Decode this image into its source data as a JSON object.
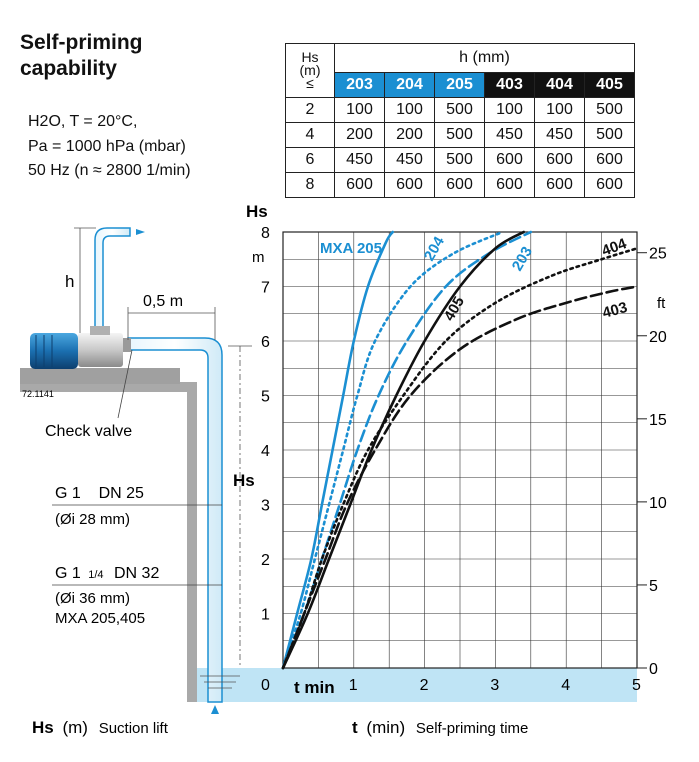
{
  "title_lines": [
    "Self-priming",
    "capability"
  ],
  "conditions": [
    "H2O, T = 20°C,",
    "Pa = 1000 hPa (mbar)",
    "50 Hz (n ≈ 2800 1/min)"
  ],
  "table": {
    "hs_header": [
      "Hs",
      "(m)",
      "≤"
    ],
    "h_header": "h (mm)",
    "models": [
      {
        "name": "203",
        "color": "#1b8fd2"
      },
      {
        "name": "204",
        "color": "#1b8fd2"
      },
      {
        "name": "205",
        "color": "#1b8fd2"
      },
      {
        "name": "403",
        "color": "#111111"
      },
      {
        "name": "404",
        "color": "#111111"
      },
      {
        "name": "405",
        "color": "#111111"
      }
    ],
    "rows": [
      {
        "hs": "2",
        "values": [
          "100",
          "100",
          "500",
          "100",
          "100",
          "500"
        ]
      },
      {
        "hs": "4",
        "values": [
          "200",
          "200",
          "500",
          "450",
          "450",
          "500"
        ]
      },
      {
        "hs": "6",
        "values": [
          "450",
          "450",
          "500",
          "600",
          "600",
          "600"
        ]
      },
      {
        "hs": "8",
        "values": [
          "600",
          "600",
          "600",
          "600",
          "600",
          "600"
        ]
      }
    ]
  },
  "diagram": {
    "h_label": "h",
    "distance_label": "0,5 m",
    "code": "72.1141",
    "check_valve": "Check valve",
    "hs_label": "Hs",
    "pipe1": {
      "line1": "G 1    DN 25",
      "line2": "(Øi 28 mm)"
    },
    "pipe2": {
      "line1a": "G 1",
      "line1b": "1/4",
      "line1c": "DN 32",
      "line2": "(Øi 36 mm)",
      "line3": "MXA 205,405"
    },
    "water_color": "#bfe4f5",
    "pipe_color": "#1b8fd2"
  },
  "chart_data": {
    "type": "line",
    "ylabel": "Hs",
    "yunit": "m",
    "secondary_unit": "ft",
    "xlabel": "t min",
    "xlim": [
      0,
      5
    ],
    "ylim": [
      0,
      8
    ],
    "x_ticks": [
      "0",
      "1",
      "2",
      "3",
      "4",
      "5"
    ],
    "y_ticks": [
      "1",
      "2",
      "3",
      "4",
      "5",
      "6",
      "7",
      "8"
    ],
    "ft_ticks": [
      "0",
      "5",
      "10",
      "15",
      "20",
      "25"
    ],
    "grid": true,
    "series": [
      {
        "name": "MXA 205",
        "color": "#1b8fd2",
        "dash": "solid",
        "points": [
          [
            0,
            0
          ],
          [
            0.2,
            1.0
          ],
          [
            0.4,
            2.0
          ],
          [
            0.55,
            3.0
          ],
          [
            0.7,
            4.0
          ],
          [
            0.85,
            5.0
          ],
          [
            1.0,
            6.0
          ],
          [
            1.2,
            7.0
          ],
          [
            1.45,
            7.8
          ],
          [
            1.55,
            8.0
          ]
        ]
      },
      {
        "name": "204",
        "color": "#1b8fd2",
        "dash": "dot",
        "points": [
          [
            0,
            0
          ],
          [
            0.25,
            1.0
          ],
          [
            0.45,
            2.0
          ],
          [
            0.65,
            3.0
          ],
          [
            0.85,
            4.0
          ],
          [
            1.05,
            5.0
          ],
          [
            1.3,
            6.0
          ],
          [
            1.8,
            7.0
          ],
          [
            2.4,
            7.6
          ],
          [
            3.1,
            8.0
          ]
        ]
      },
      {
        "name": "203",
        "color": "#1b8fd2",
        "dash": "dash",
        "points": [
          [
            0,
            0
          ],
          [
            0.3,
            1.0
          ],
          [
            0.55,
            2.0
          ],
          [
            0.8,
            3.0
          ],
          [
            1.05,
            4.0
          ],
          [
            1.35,
            5.0
          ],
          [
            1.75,
            6.0
          ],
          [
            2.3,
            7.0
          ],
          [
            2.9,
            7.6
          ],
          [
            3.5,
            8.0
          ]
        ]
      },
      {
        "name": "405",
        "color": "#111111",
        "dash": "solid",
        "points": [
          [
            0,
            0
          ],
          [
            0.35,
            1.0
          ],
          [
            0.65,
            2.0
          ],
          [
            0.95,
            3.0
          ],
          [
            1.25,
            4.0
          ],
          [
            1.6,
            5.0
          ],
          [
            2.0,
            6.0
          ],
          [
            2.5,
            7.0
          ],
          [
            3.0,
            7.7
          ],
          [
            3.4,
            8.0
          ]
        ]
      },
      {
        "name": "404",
        "color": "#111111",
        "dash": "dot",
        "points": [
          [
            0,
            0
          ],
          [
            0.3,
            1.0
          ],
          [
            0.55,
            2.0
          ],
          [
            0.85,
            3.0
          ],
          [
            1.2,
            4.0
          ],
          [
            1.7,
            5.0
          ],
          [
            2.3,
            6.0
          ],
          [
            3.0,
            6.7
          ],
          [
            3.8,
            7.2
          ],
          [
            4.5,
            7.5
          ],
          [
            5.0,
            7.7
          ]
        ]
      },
      {
        "name": "403",
        "color": "#111111",
        "dash": "dash",
        "points": [
          [
            0,
            0
          ],
          [
            0.3,
            1.0
          ],
          [
            0.6,
            2.0
          ],
          [
            0.9,
            3.0
          ],
          [
            1.3,
            4.0
          ],
          [
            1.8,
            5.0
          ],
          [
            2.5,
            5.85
          ],
          [
            3.3,
            6.4
          ],
          [
            4.0,
            6.7
          ],
          [
            4.6,
            6.9
          ],
          [
            5.0,
            7.0
          ]
        ]
      }
    ],
    "series_labels": [
      "MXA 205",
      "204",
      "203",
      "405",
      "404",
      "403"
    ]
  },
  "bottom": {
    "hs_bold": "Hs",
    "hs_unit": "(m)",
    "hs_text": "Suction lift",
    "t_bold": "t",
    "t_unit": "(min)",
    "t_text": "Self-priming time"
  }
}
